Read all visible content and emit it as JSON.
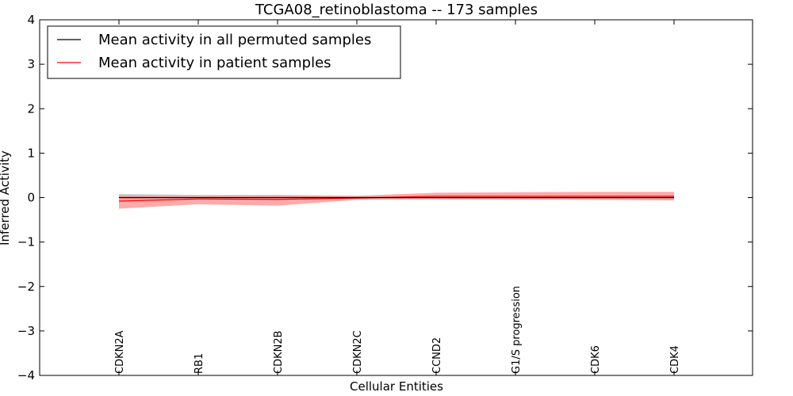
{
  "chart_data": {
    "type": "line",
    "title": "TCGA08_retinoblastoma -- 173 samples",
    "xlabel": "Cellular Entities",
    "ylabel": "Inferred Activity",
    "ylim": [
      -4,
      4
    ],
    "yticks": [
      4,
      3,
      2,
      1,
      0,
      -1,
      -2,
      -3,
      -4
    ],
    "ytick_labels": [
      "4",
      "3",
      "2",
      "1",
      "0",
      "−1",
      "−2",
      "−3",
      "−4"
    ],
    "categories": [
      "CDKN2A",
      "RB1",
      "CDKN2B",
      "CDKN2C",
      "CCND2",
      "G1/S progression",
      "CDK6",
      "CDK4"
    ],
    "series": [
      {
        "name": "Mean activity in all permuted samples",
        "color": "#000000",
        "values": [
          0.0,
          0.0,
          0.0,
          0.0,
          0.0,
          0.0,
          0.0,
          0.0
        ],
        "band_upper": [
          0.08,
          0.06,
          0.06,
          0.04,
          0.04,
          0.04,
          0.05,
          0.06
        ],
        "band_lower": [
          -0.08,
          -0.06,
          -0.06,
          -0.04,
          -0.04,
          -0.04,
          -0.05,
          -0.06
        ],
        "band_color": "#999999"
      },
      {
        "name": "Mean activity in patient samples",
        "color": "#ff0000",
        "values": [
          -0.08,
          -0.03,
          -0.04,
          -0.01,
          0.03,
          0.03,
          0.03,
          0.03
        ],
        "band_upper": [
          0.05,
          0.03,
          0.05,
          0.04,
          0.11,
          0.12,
          0.13,
          0.13
        ],
        "band_lower": [
          -0.25,
          -0.15,
          -0.18,
          -0.05,
          -0.04,
          -0.05,
          -0.05,
          -0.06
        ],
        "band_color": "#ff9a9a"
      }
    ],
    "legend_position": "top-left",
    "grid": false
  }
}
